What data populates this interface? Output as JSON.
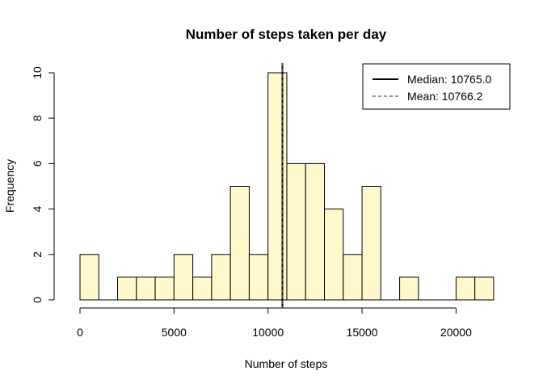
{
  "chart_data": {
    "type": "bar",
    "title": "Number of steps taken per day",
    "xlabel": "Number of steps",
    "ylabel": "Frequency",
    "bin_width": 1000,
    "bins_start": [
      0,
      1000,
      2000,
      3000,
      4000,
      5000,
      6000,
      7000,
      8000,
      9000,
      10000,
      11000,
      12000,
      13000,
      14000,
      15000,
      16000,
      17000,
      18000,
      19000,
      20000,
      21000
    ],
    "values": [
      2,
      0,
      1,
      1,
      1,
      2,
      1,
      2,
      5,
      2,
      10,
      6,
      6,
      4,
      2,
      5,
      0,
      1,
      0,
      0,
      1,
      1
    ],
    "xlim": [
      0,
      22000
    ],
    "ylim": [
      0,
      10
    ],
    "x_ticks": [
      0,
      5000,
      10000,
      15000,
      20000
    ],
    "x_tick_labels": [
      "0",
      "5000",
      "10000",
      "15000",
      "20000"
    ],
    "y_ticks": [
      0,
      2,
      4,
      6,
      8,
      10
    ],
    "y_tick_labels": [
      "0",
      "2",
      "4",
      "6",
      "8",
      "10"
    ],
    "bar_color": "#fff8cd",
    "grid": false,
    "lines": [
      {
        "name": "Median: 10765.0",
        "value": 10765.0,
        "style": "solid"
      },
      {
        "name": "Mean: 10766.2",
        "value": 10766.2,
        "style": "dashed"
      }
    ],
    "legend_position": "top-right"
  }
}
